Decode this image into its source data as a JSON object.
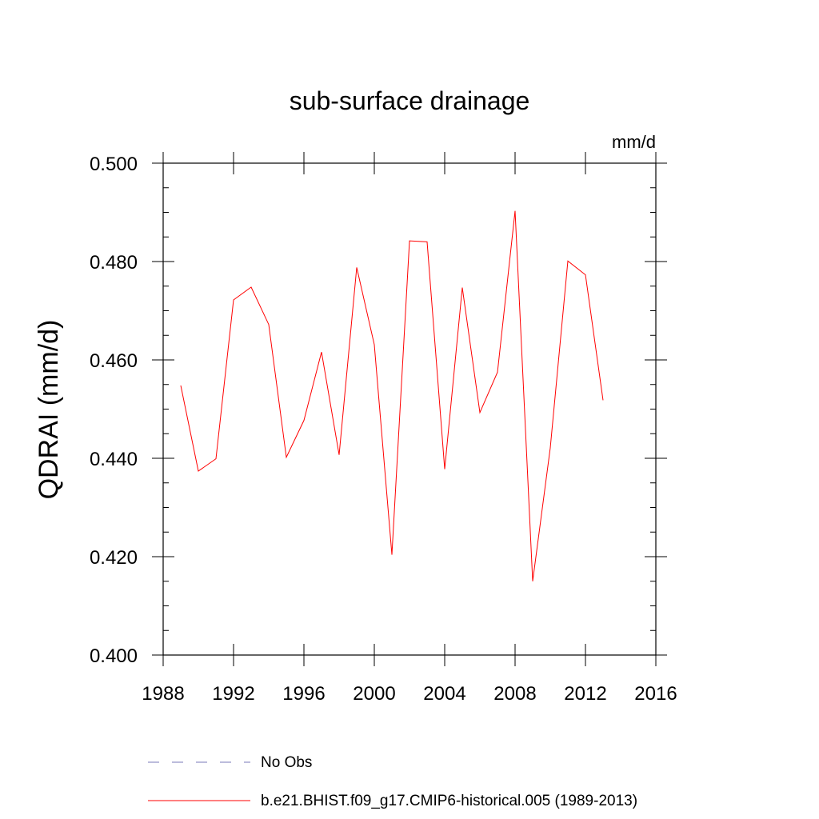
{
  "chart_data": {
    "type": "line",
    "title": "sub-surface drainage",
    "units_label": "mm/d",
    "ylabel": "QDRAI  (mm/d)",
    "xlabel": "",
    "xlim": [
      1988,
      2016
    ],
    "ylim": [
      0.4,
      0.5
    ],
    "x_ticks": [
      1988,
      1992,
      1996,
      2000,
      2004,
      2008,
      2012,
      2016
    ],
    "x_tick_labels": [
      "1988",
      "1992",
      "1996",
      "2000",
      "2004",
      "2008",
      "2012",
      "2016"
    ],
    "y_ticks": [
      0.4,
      0.42,
      0.44,
      0.46,
      0.48,
      0.5
    ],
    "y_tick_labels": [
      "0.400",
      "0.420",
      "0.440",
      "0.460",
      "0.480",
      "0.500"
    ],
    "grid": false,
    "legend_position": "bottom",
    "legend": [
      {
        "label": "No Obs",
        "style": "dashed",
        "color": "#7a7ab8"
      },
      {
        "label": "b.e21.BHIST.f09_g17.CMIP6-historical.005 (1989-2013)",
        "style": "solid",
        "color": "#ff0000"
      }
    ],
    "series": [
      {
        "color": "#ff0000",
        "x": [
          1989,
          1990,
          1991,
          1992,
          1993,
          1994,
          1995,
          1996,
          1997,
          1998,
          1999,
          2000,
          2001,
          2002,
          2003,
          2004,
          2005,
          2006,
          2007,
          2008,
          2009,
          2010,
          2011,
          2012,
          2013
        ],
        "y": [
          0.4548,
          0.4374,
          0.4399,
          0.4722,
          0.4748,
          0.4672,
          0.4402,
          0.4477,
          0.4616,
          0.4407,
          0.4788,
          0.4631,
          0.4204,
          0.4842,
          0.484,
          0.4378,
          0.4747,
          0.4493,
          0.4575,
          0.4903,
          0.415,
          0.4421,
          0.4801,
          0.4773,
          0.4518
        ]
      }
    ]
  }
}
